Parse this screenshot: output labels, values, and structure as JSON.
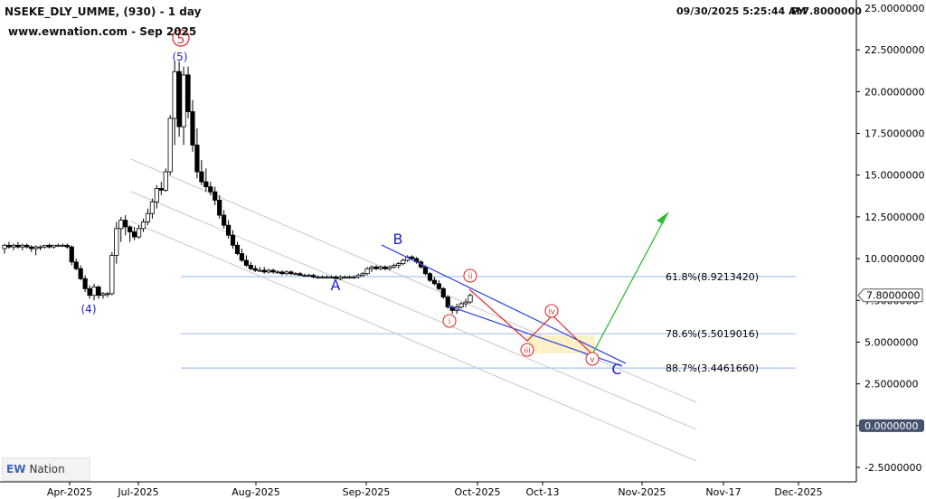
{
  "header": {
    "symbol_line": "NSEKE_DLY_UMME, (930) - 1 day",
    "source_line": "www.ewnation.com  - Sep 2025",
    "timestamp": "09/30/2025 5:25:44 AM",
    "price_label": "P:7.8000000"
  },
  "logo": {
    "mark": "EW",
    "text": "Nation",
    "icon": "ew-nation-logo-icon"
  },
  "colors": {
    "up_candle": "#ffffff",
    "down_candle": "#000000",
    "wave_label_blue": "#2222cc",
    "wave_label_red": "#e03030",
    "channel_blue": "#3a4ee0",
    "fib_line": "#a9c4ee",
    "projection_green": "#33bb33",
    "projection_red": "#e03030",
    "target_zone": "#fdf0c2"
  },
  "chart_data": {
    "type": "candlestick",
    "title": "NSEKE_DLY_UMME, (930) - 1 day",
    "ylim": [
      -2.5,
      25
    ],
    "y_ticks": [
      "25.0000000",
      "22.5000000",
      "20.0000000",
      "17.5000000",
      "15.0000000",
      "12.5000000",
      "10.0000000",
      "7.5000000",
      "5.0000000",
      "2.5000000",
      "0.0000000",
      "-2.5000000"
    ],
    "x_ticks": [
      "Apr-2025",
      "Jul-2025",
      "Aug-2025",
      "Sep-2025",
      "Oct-2025",
      "Oct-13",
      "Nov-2025",
      "Nov-17",
      "Dec-2025"
    ],
    "last_price": "7.8000000",
    "zero_marker": "0.0000000",
    "fib_levels": [
      {
        "label": "61.8%(8.9213420)",
        "value": 8.921342
      },
      {
        "label": "78.6%(5.5019016)",
        "value": 5.5019016
      },
      {
        "label": "88.7%(3.4461660)",
        "value": 3.446166
      }
    ],
    "wave_labels": {
      "w4": "(4)",
      "w5": "(5)",
      "w5_circled": "5",
      "A": "A",
      "B": "B",
      "C": "C",
      "sub_i": "i",
      "sub_ii": "ii",
      "sub_iii": "iii",
      "sub_iv": "iv",
      "sub_v": "v"
    },
    "candles": {
      "unit": "price",
      "series": [
        {
          "o": 10.6,
          "h": 10.9,
          "l": 10.3,
          "c": 10.8
        },
        {
          "o": 10.8,
          "h": 11.0,
          "l": 10.6,
          "c": 10.7
        },
        {
          "o": 10.7,
          "h": 10.9,
          "l": 10.5,
          "c": 10.8
        },
        {
          "o": 10.8,
          "h": 11.0,
          "l": 10.6,
          "c": 10.7
        },
        {
          "o": 10.7,
          "h": 10.9,
          "l": 10.5,
          "c": 10.8
        },
        {
          "o": 10.8,
          "h": 10.9,
          "l": 10.6,
          "c": 10.7
        },
        {
          "o": 10.7,
          "h": 10.8,
          "l": 10.4,
          "c": 10.6
        },
        {
          "o": 10.6,
          "h": 10.8,
          "l": 10.2,
          "c": 10.7
        },
        {
          "o": 10.7,
          "h": 10.8,
          "l": 10.5,
          "c": 10.7
        },
        {
          "o": 10.7,
          "h": 10.8,
          "l": 10.6,
          "c": 10.8
        },
        {
          "o": 10.8,
          "h": 10.9,
          "l": 10.6,
          "c": 10.7
        },
        {
          "o": 10.7,
          "h": 10.8,
          "l": 10.6,
          "c": 10.8
        },
        {
          "o": 10.8,
          "h": 10.9,
          "l": 10.7,
          "c": 10.8
        },
        {
          "o": 10.8,
          "h": 10.9,
          "l": 10.7,
          "c": 10.8
        },
        {
          "o": 10.8,
          "h": 10.9,
          "l": 10.6,
          "c": 10.7
        },
        {
          "o": 10.7,
          "h": 10.8,
          "l": 9.6,
          "c": 9.8
        },
        {
          "o": 9.8,
          "h": 10.0,
          "l": 9.3,
          "c": 9.4
        },
        {
          "o": 9.4,
          "h": 9.6,
          "l": 8.7,
          "c": 8.8
        },
        {
          "o": 8.8,
          "h": 9.0,
          "l": 8.0,
          "c": 8.2
        },
        {
          "o": 8.2,
          "h": 8.4,
          "l": 7.6,
          "c": 7.8
        },
        {
          "o": 7.8,
          "h": 8.5,
          "l": 7.5,
          "c": 8.3
        },
        {
          "o": 8.3,
          "h": 8.4,
          "l": 7.6,
          "c": 7.8
        },
        {
          "o": 7.8,
          "h": 8.0,
          "l": 7.6,
          "c": 7.9
        },
        {
          "o": 7.9,
          "h": 8.0,
          "l": 7.7,
          "c": 7.9
        },
        {
          "o": 7.9,
          "h": 10.4,
          "l": 7.8,
          "c": 10.2
        },
        {
          "o": 10.2,
          "h": 12.2,
          "l": 9.7,
          "c": 11.8
        },
        {
          "o": 11.8,
          "h": 12.5,
          "l": 11.0,
          "c": 12.3
        },
        {
          "o": 12.3,
          "h": 12.6,
          "l": 11.4,
          "c": 11.9
        },
        {
          "o": 11.9,
          "h": 12.0,
          "l": 11.0,
          "c": 11.6
        },
        {
          "o": 11.6,
          "h": 11.9,
          "l": 11.1,
          "c": 11.3
        },
        {
          "o": 11.3,
          "h": 12.0,
          "l": 11.2,
          "c": 11.8
        },
        {
          "o": 11.8,
          "h": 12.4,
          "l": 11.6,
          "c": 12.2
        },
        {
          "o": 12.2,
          "h": 13.0,
          "l": 12.0,
          "c": 12.7
        },
        {
          "o": 12.7,
          "h": 13.6,
          "l": 12.4,
          "c": 13.4
        },
        {
          "o": 13.4,
          "h": 14.4,
          "l": 13.0,
          "c": 14.2
        },
        {
          "o": 14.2,
          "h": 14.6,
          "l": 13.8,
          "c": 14.1
        },
        {
          "o": 14.1,
          "h": 15.4,
          "l": 14.0,
          "c": 15.2
        },
        {
          "o": 15.2,
          "h": 18.6,
          "l": 15.0,
          "c": 18.4
        },
        {
          "o": 18.4,
          "h": 21.8,
          "l": 16.8,
          "c": 21.2
        },
        {
          "o": 21.2,
          "h": 21.8,
          "l": 17.3,
          "c": 17.9
        },
        {
          "o": 17.9,
          "h": 21.5,
          "l": 16.8,
          "c": 21.0
        },
        {
          "o": 21.0,
          "h": 21.5,
          "l": 18.4,
          "c": 18.8
        },
        {
          "o": 18.8,
          "h": 19.5,
          "l": 16.4,
          "c": 16.8
        },
        {
          "o": 16.8,
          "h": 17.8,
          "l": 14.8,
          "c": 15.2
        },
        {
          "o": 15.2,
          "h": 15.9,
          "l": 14.4,
          "c": 14.6
        },
        {
          "o": 14.6,
          "h": 15.4,
          "l": 14.0,
          "c": 14.3
        },
        {
          "o": 14.3,
          "h": 14.6,
          "l": 13.8,
          "c": 14.0
        },
        {
          "o": 14.0,
          "h": 14.3,
          "l": 13.2,
          "c": 13.5
        },
        {
          "o": 13.5,
          "h": 13.8,
          "l": 12.4,
          "c": 12.6
        },
        {
          "o": 12.6,
          "h": 12.9,
          "l": 11.8,
          "c": 12.0
        },
        {
          "o": 12.0,
          "h": 12.3,
          "l": 11.2,
          "c": 11.4
        },
        {
          "o": 11.4,
          "h": 11.7,
          "l": 10.6,
          "c": 10.8
        },
        {
          "o": 10.8,
          "h": 11.0,
          "l": 10.2,
          "c": 10.3
        },
        {
          "o": 10.3,
          "h": 10.6,
          "l": 9.8,
          "c": 9.9
        },
        {
          "o": 9.9,
          "h": 10.2,
          "l": 9.5,
          "c": 9.6
        },
        {
          "o": 9.6,
          "h": 9.8,
          "l": 9.3,
          "c": 9.4
        },
        {
          "o": 9.4,
          "h": 9.6,
          "l": 9.2,
          "c": 9.3
        },
        {
          "o": 9.3,
          "h": 9.5,
          "l": 9.2,
          "c": 9.3
        },
        {
          "o": 9.3,
          "h": 9.5,
          "l": 9.1,
          "c": 9.2
        },
        {
          "o": 9.2,
          "h": 9.4,
          "l": 9.1,
          "c": 9.3
        },
        {
          "o": 9.3,
          "h": 9.4,
          "l": 9.1,
          "c": 9.2
        },
        {
          "o": 9.2,
          "h": 9.3,
          "l": 9.1,
          "c": 9.2
        },
        {
          "o": 9.2,
          "h": 9.3,
          "l": 9.0,
          "c": 9.1
        },
        {
          "o": 9.1,
          "h": 9.3,
          "l": 9.0,
          "c": 9.2
        },
        {
          "o": 9.2,
          "h": 9.3,
          "l": 9.0,
          "c": 9.1
        },
        {
          "o": 9.1,
          "h": 9.2,
          "l": 9.0,
          "c": 9.1
        },
        {
          "o": 9.1,
          "h": 9.2,
          "l": 9.0,
          "c": 9.0
        },
        {
          "o": 9.0,
          "h": 9.1,
          "l": 8.9,
          "c": 9.0
        },
        {
          "o": 9.0,
          "h": 9.1,
          "l": 8.9,
          "c": 9.0
        },
        {
          "o": 9.0,
          "h": 9.1,
          "l": 8.8,
          "c": 8.9
        },
        {
          "o": 8.9,
          "h": 9.0,
          "l": 8.8,
          "c": 8.9
        },
        {
          "o": 8.9,
          "h": 9.0,
          "l": 8.8,
          "c": 8.9
        },
        {
          "o": 8.9,
          "h": 9.0,
          "l": 8.8,
          "c": 8.9
        },
        {
          "o": 8.9,
          "h": 9.0,
          "l": 8.8,
          "c": 8.9
        },
        {
          "o": 8.9,
          "h": 9.0,
          "l": 8.8,
          "c": 8.8
        },
        {
          "o": 8.8,
          "h": 9.0,
          "l": 8.7,
          "c": 8.9
        },
        {
          "o": 8.9,
          "h": 9.0,
          "l": 8.8,
          "c": 8.9
        },
        {
          "o": 8.9,
          "h": 9.0,
          "l": 8.8,
          "c": 8.9
        },
        {
          "o": 8.9,
          "h": 9.0,
          "l": 8.8,
          "c": 8.9
        },
        {
          "o": 8.9,
          "h": 9.1,
          "l": 8.8,
          "c": 9.0
        },
        {
          "o": 9.0,
          "h": 9.2,
          "l": 8.9,
          "c": 9.1
        },
        {
          "o": 9.1,
          "h": 9.5,
          "l": 9.0,
          "c": 9.4
        },
        {
          "o": 9.4,
          "h": 9.6,
          "l": 9.2,
          "c": 9.5
        },
        {
          "o": 9.5,
          "h": 9.6,
          "l": 9.3,
          "c": 9.4
        },
        {
          "o": 9.4,
          "h": 9.6,
          "l": 9.3,
          "c": 9.5
        },
        {
          "o": 9.5,
          "h": 9.6,
          "l": 9.3,
          "c": 9.4
        },
        {
          "o": 9.4,
          "h": 9.6,
          "l": 9.3,
          "c": 9.5
        },
        {
          "o": 9.5,
          "h": 9.7,
          "l": 9.4,
          "c": 9.6
        },
        {
          "o": 9.6,
          "h": 9.8,
          "l": 9.4,
          "c": 9.7
        },
        {
          "o": 9.7,
          "h": 10.0,
          "l": 9.6,
          "c": 9.9
        },
        {
          "o": 9.9,
          "h": 10.2,
          "l": 9.8,
          "c": 10.1
        },
        {
          "o": 10.1,
          "h": 10.2,
          "l": 9.9,
          "c": 10.0
        },
        {
          "o": 10.0,
          "h": 10.1,
          "l": 9.7,
          "c": 9.8
        },
        {
          "o": 9.8,
          "h": 9.9,
          "l": 9.4,
          "c": 9.5
        },
        {
          "o": 9.5,
          "h": 9.6,
          "l": 9.0,
          "c": 9.1
        },
        {
          "o": 9.1,
          "h": 9.2,
          "l": 8.6,
          "c": 8.7
        },
        {
          "o": 8.7,
          "h": 8.9,
          "l": 8.4,
          "c": 8.5
        },
        {
          "o": 8.5,
          "h": 8.7,
          "l": 8.1,
          "c": 8.2
        },
        {
          "o": 8.2,
          "h": 8.3,
          "l": 7.6,
          "c": 7.7
        },
        {
          "o": 7.7,
          "h": 7.8,
          "l": 7.0,
          "c": 7.1
        },
        {
          "o": 7.1,
          "h": 7.2,
          "l": 6.7,
          "c": 6.9
        },
        {
          "o": 6.9,
          "h": 7.3,
          "l": 6.7,
          "c": 7.1
        },
        {
          "o": 7.1,
          "h": 7.4,
          "l": 7.0,
          "c": 7.3
        },
        {
          "o": 7.3,
          "h": 7.6,
          "l": 7.1,
          "c": 7.4
        },
        {
          "o": 7.4,
          "h": 7.9,
          "l": 7.3,
          "c": 7.8
        }
      ]
    }
  }
}
